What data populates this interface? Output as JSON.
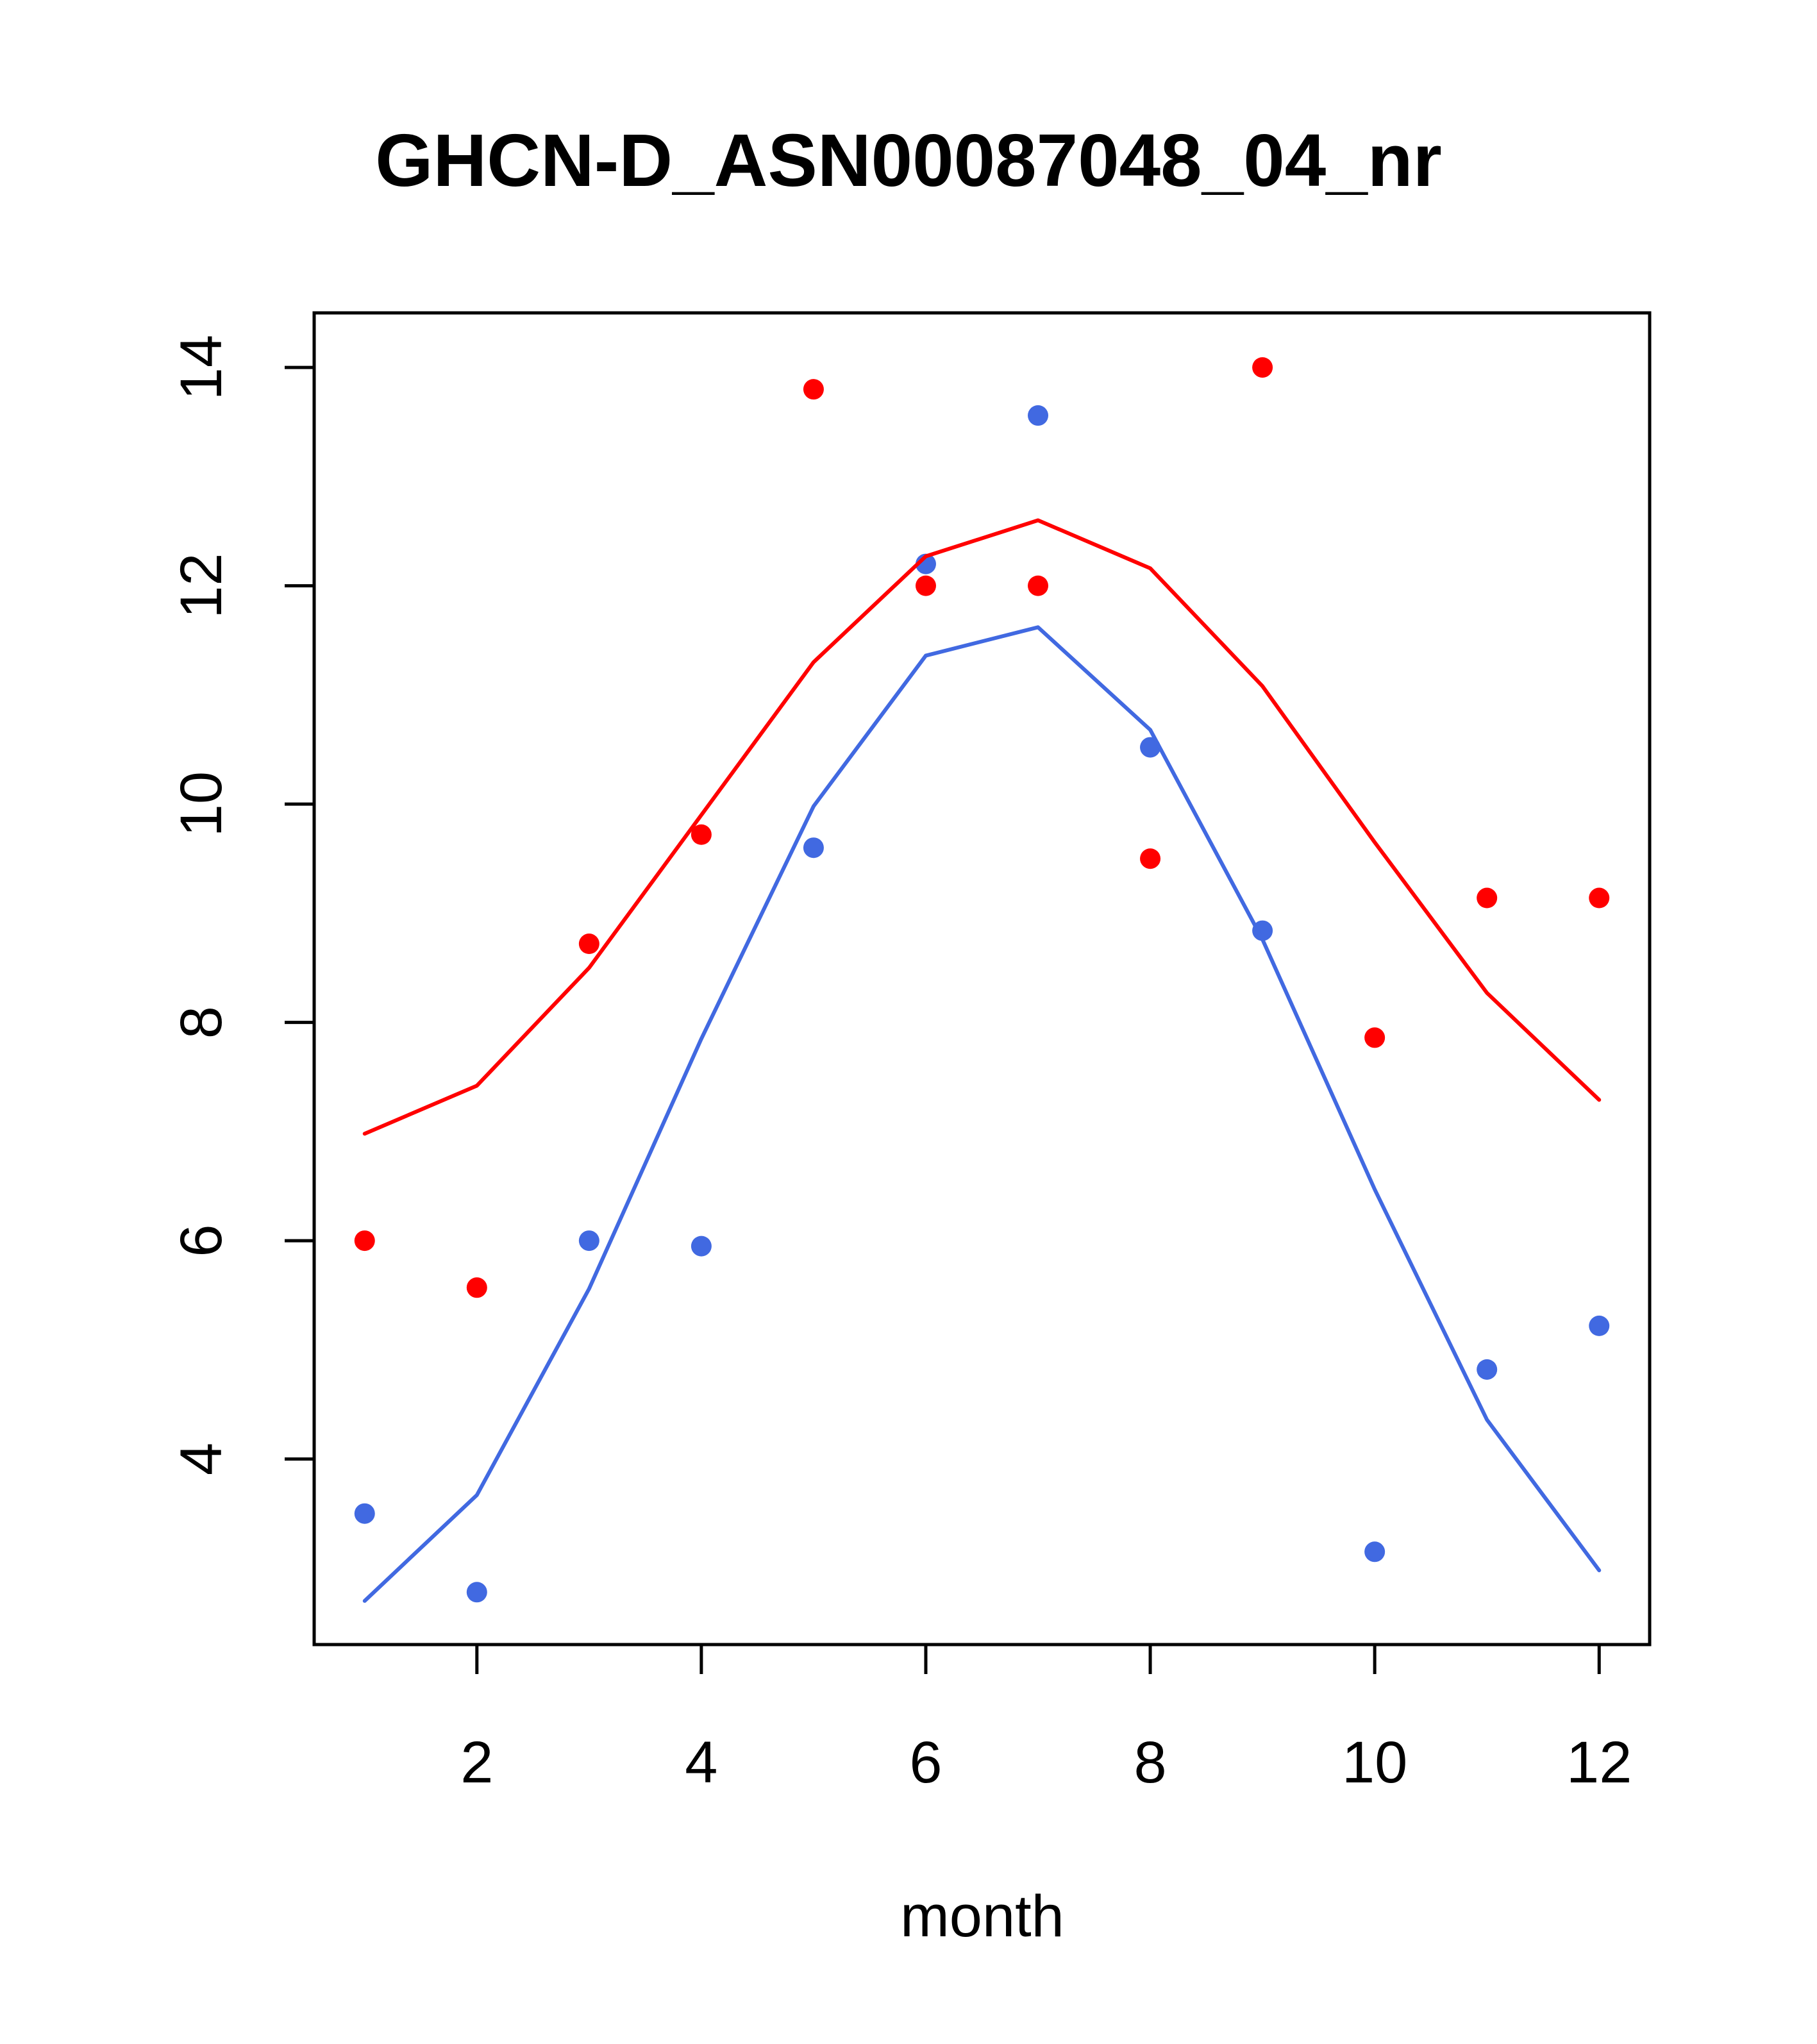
{
  "chart_data": {
    "type": "scatter",
    "title": "GHCN-D_ASN00087048_04_nr",
    "xlabel": "month",
    "ylabel": "",
    "xlim": [
      0.55,
      12.45
    ],
    "ylim": [
      2.3,
      14.5
    ],
    "xticks": [
      2,
      4,
      6,
      8,
      10,
      12
    ],
    "yticks": [
      4,
      6,
      8,
      10,
      12,
      14
    ],
    "grid": false,
    "legend": "none",
    "series": [
      {
        "kind": "points",
        "color": "#FF0000",
        "x": [
          1,
          2,
          3,
          4,
          5,
          6,
          7,
          8,
          9,
          10,
          11,
          12
        ],
        "y": [
          6.0,
          5.57,
          8.72,
          9.72,
          13.8,
          12.0,
          12.0,
          9.5,
          14.0,
          7.86,
          9.14,
          9.14
        ]
      },
      {
        "kind": "points",
        "color": "#4169E1",
        "x": [
          1,
          2,
          3,
          4,
          5,
          6,
          7,
          8,
          9,
          10,
          11,
          12
        ],
        "y": [
          3.5,
          2.78,
          6.0,
          5.95,
          9.6,
          12.2,
          13.56,
          10.52,
          8.84,
          3.15,
          4.82,
          5.22
        ]
      },
      {
        "kind": "line",
        "color": "#FF0000",
        "x": [
          1,
          2,
          3,
          4,
          5,
          6,
          7,
          8,
          9,
          10,
          11,
          12
        ],
        "y": [
          6.98,
          7.42,
          8.5,
          9.9,
          11.3,
          12.27,
          12.6,
          12.16,
          11.08,
          9.65,
          8.27,
          7.29
        ]
      },
      {
        "kind": "line",
        "color": "#4169E1",
        "x": [
          1,
          2,
          3,
          4,
          5,
          6,
          7,
          8,
          9,
          10,
          11,
          12
        ],
        "y": [
          2.7,
          3.67,
          5.56,
          7.85,
          9.98,
          11.36,
          11.62,
          10.68,
          8.76,
          6.47,
          4.36,
          2.98
        ]
      }
    ]
  }
}
